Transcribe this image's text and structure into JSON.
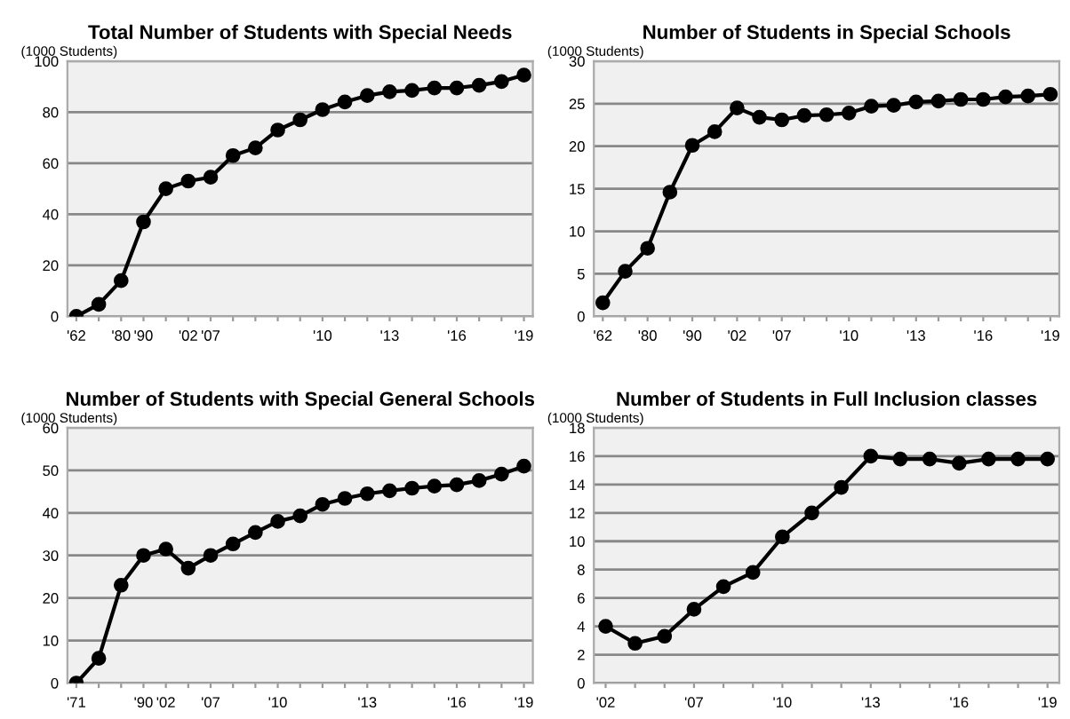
{
  "chart_data": [
    {
      "type": "line",
      "title": "Total Number of Students with Special Needs",
      "ylabel": "(1000 Students)",
      "categories": [
        "'62",
        null,
        "'80",
        "'90",
        null,
        "'02",
        "'07",
        null,
        null,
        null,
        null,
        "'10",
        null,
        null,
        "'13",
        null,
        null,
        "'16",
        null,
        null,
        "'19"
      ],
      "series": [
        {
          "color": "#000000",
          "values": [
            0,
            4.7,
            14,
            37,
            50,
            53,
            54.5,
            63,
            66,
            73,
            77,
            81,
            84,
            86.5,
            88,
            88.5,
            89.5,
            89.5,
            90.5,
            92,
            94.5
          ]
        }
      ],
      "ylim": [
        0,
        100
      ],
      "yticks": [
        0,
        20,
        40,
        60,
        80,
        100
      ],
      "grid": "y",
      "marker": "circle",
      "line_style": "solid"
    },
    {
      "type": "line",
      "title": "Number of Students in Special Schools",
      "ylabel": "(1000 Students)",
      "categories": [
        "'62",
        null,
        "'80",
        null,
        "'90",
        null,
        "'02",
        null,
        "'07",
        null,
        null,
        "'10",
        null,
        null,
        "'13",
        null,
        null,
        "'16",
        null,
        null,
        "'19"
      ],
      "series": [
        {
          "color": "#000000",
          "values": [
            1.6,
            5.3,
            8,
            14.6,
            20.1,
            21.7,
            24.5,
            23.4,
            23.1,
            23.6,
            23.7,
            23.9,
            24.7,
            24.8,
            25.2,
            25.3,
            25.5,
            25.5,
            25.8,
            25.9,
            26.1
          ]
        }
      ],
      "ylim": [
        0,
        30
      ],
      "yticks": [
        0,
        5,
        10,
        15,
        20,
        25,
        30
      ],
      "grid": "y",
      "marker": "circle",
      "line_style": "solid"
    },
    {
      "type": "line",
      "title": "Number of Students with Special General Schools",
      "ylabel": "(1000 Students)",
      "categories": [
        "'71",
        null,
        null,
        "'90",
        "'02",
        null,
        "'07",
        null,
        null,
        "'10",
        null,
        null,
        null,
        "'13",
        null,
        null,
        null,
        "'16",
        null,
        null,
        "'19"
      ],
      "series": [
        {
          "color": "#000000",
          "values": [
            0,
            5.8,
            23,
            30,
            31.5,
            27,
            30,
            32.7,
            35.4,
            38,
            39.3,
            42,
            43.4,
            44.5,
            45.2,
            45.8,
            46.3,
            46.6,
            47.6,
            49.1,
            51
          ]
        }
      ],
      "ylim": [
        0,
        60
      ],
      "yticks": [
        0,
        10,
        20,
        30,
        40,
        50,
        60
      ],
      "grid": "y",
      "marker": "circle",
      "line_style": "solid"
    },
    {
      "type": "line",
      "title": "Number of Students in Full Inclusion classes",
      "ylabel": "(1000 Students)",
      "categories": [
        "'02",
        null,
        null,
        "'07",
        null,
        null,
        "'10",
        null,
        null,
        "'13",
        null,
        null,
        "'16",
        null,
        null,
        "'19"
      ],
      "series": [
        {
          "color": "#000000",
          "values": [
            4.0,
            2.8,
            3.3,
            5.2,
            6.8,
            7.8,
            10.3,
            12.0,
            13.8,
            16.0,
            15.8,
            15.8,
            15.5,
            15.8,
            15.8,
            15.8
          ]
        }
      ],
      "ylim": [
        0,
        18
      ],
      "yticks": [
        0,
        2,
        4,
        6,
        8,
        10,
        12,
        14,
        16,
        18
      ],
      "grid": "y",
      "marker": "circle",
      "line_style": "solid"
    }
  ]
}
